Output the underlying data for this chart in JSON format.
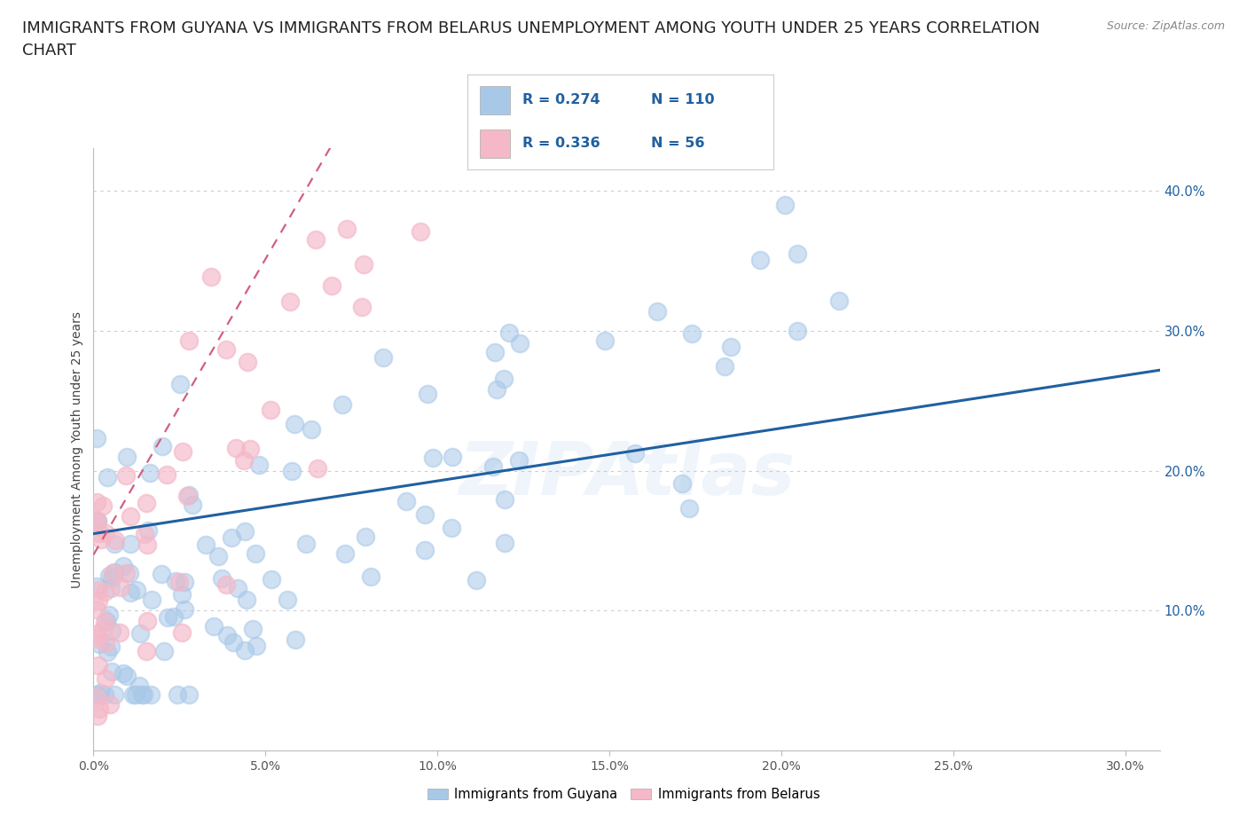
{
  "title": "IMMIGRANTS FROM GUYANA VS IMMIGRANTS FROM BELARUS UNEMPLOYMENT AMONG YOUTH UNDER 25 YEARS CORRELATION\nCHART",
  "source": "Source: ZipAtlas.com",
  "ylabel": "Unemployment Among Youth under 25 years",
  "xlim": [
    0.0,
    0.31
  ],
  "ylim": [
    0.0,
    0.43
  ],
  "xticks": [
    0.0,
    0.05,
    0.1,
    0.15,
    0.2,
    0.25,
    0.3
  ],
  "yticks": [
    0.1,
    0.2,
    0.3,
    0.4
  ],
  "ytick_labels": [
    "10.0%",
    "20.0%",
    "30.0%",
    "40.0%"
  ],
  "xtick_labels": [
    "0.0%",
    "5.0%",
    "10.0%",
    "15.0%",
    "20.0%",
    "25.0%",
    "30.0%"
  ],
  "guyana_color": "#a8c8e8",
  "belarus_color": "#f4b8c8",
  "guyana_trend_color": "#2060a0",
  "belarus_trend_color": "#d06080",
  "watermark": "ZIPAtlas",
  "watermark_color": "#a8c8e8",
  "background_color": "#ffffff",
  "legend_label_guyana": "Immigrants from Guyana",
  "legend_label_belarus": "Immigrants from Belarus",
  "legend_R_N_color": "#2060a0",
  "guyana_R": 0.274,
  "guyana_N": 110,
  "belarus_R": 0.336,
  "belarus_N": 56,
  "title_fontsize": 13,
  "axis_label_fontsize": 10,
  "source_fontsize": 9,
  "tick_fontsize": 10,
  "right_tick_color": "#2060a0"
}
